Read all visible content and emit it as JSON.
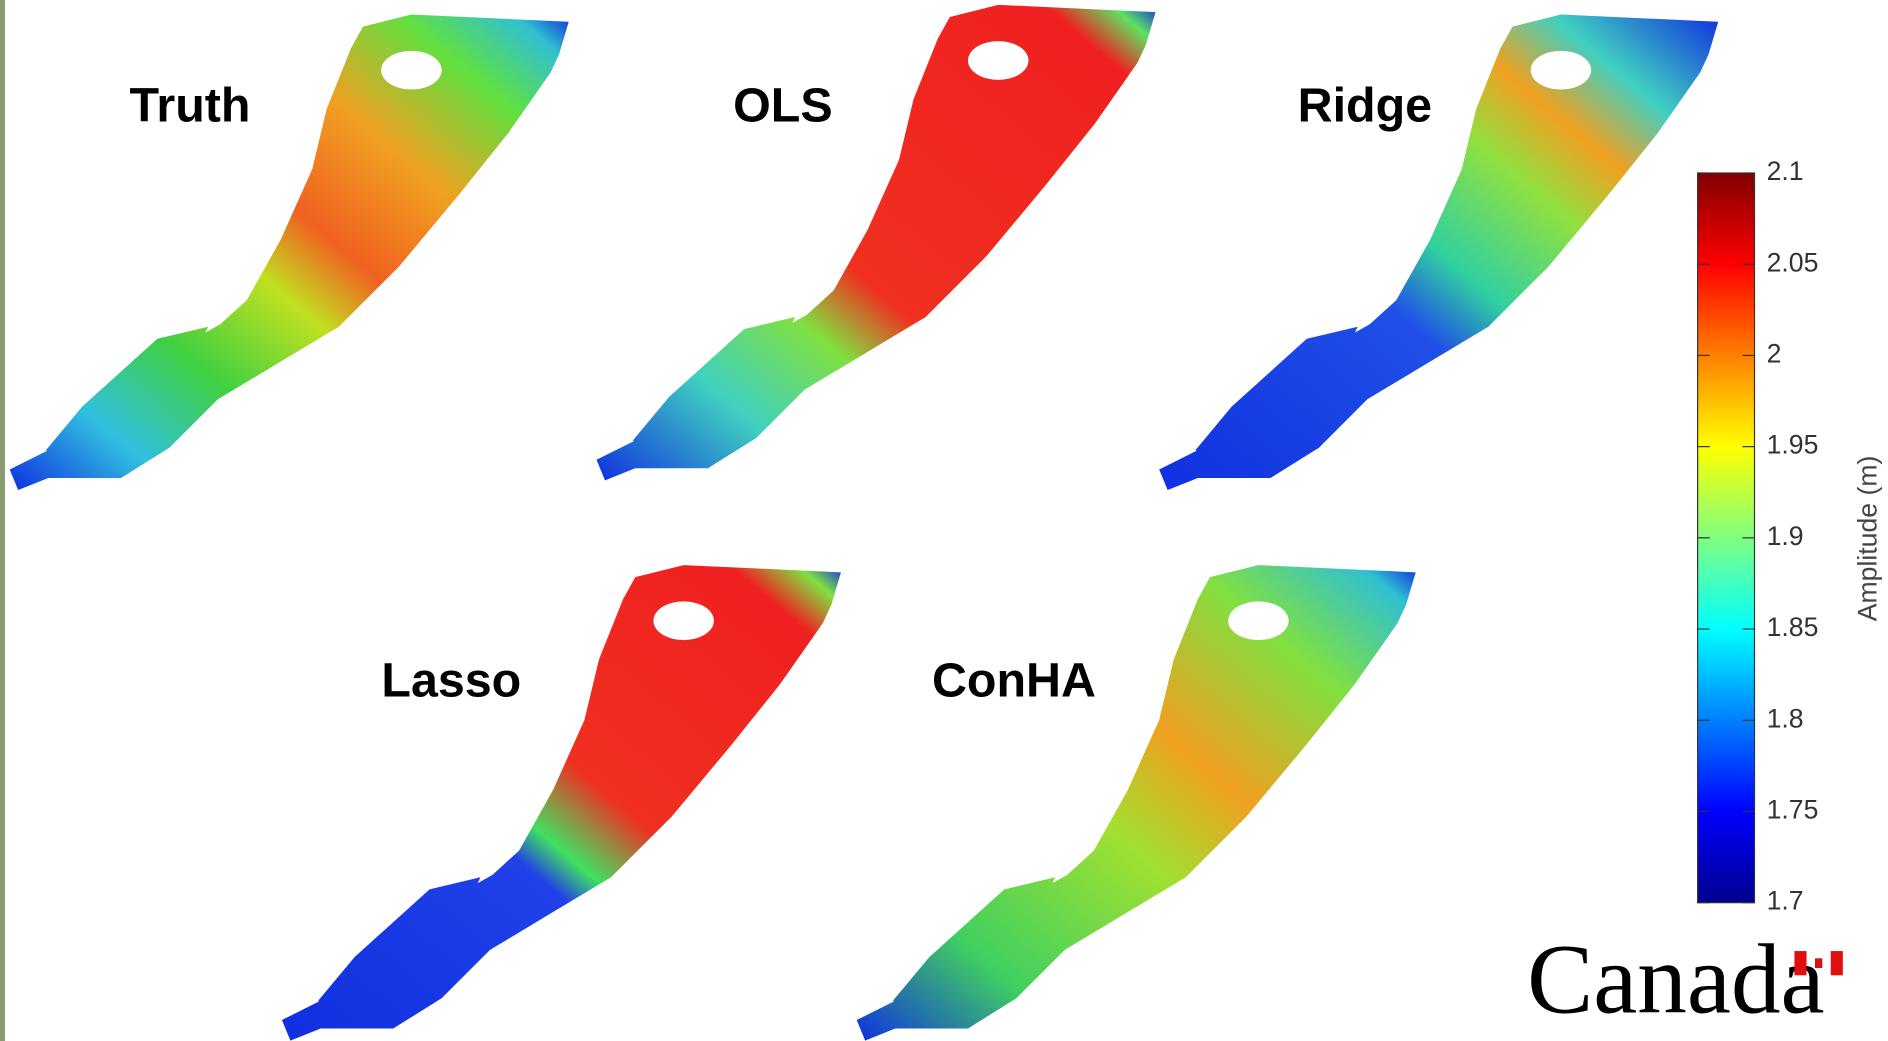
{
  "panels": [
    {
      "label": "Truth"
    },
    {
      "label": "OLS"
    },
    {
      "label": "Ridge"
    },
    {
      "label": "Lasso"
    },
    {
      "label": "ConHA"
    }
  ],
  "colorbar": {
    "label": "Amplitude (m)",
    "lim": [
      1.7,
      2.1
    ],
    "ticks": [
      1.7,
      1.75,
      1.8,
      1.85,
      1.9,
      1.95,
      2,
      2.05,
      2.1
    ]
  },
  "wordmark": "Canada"
}
